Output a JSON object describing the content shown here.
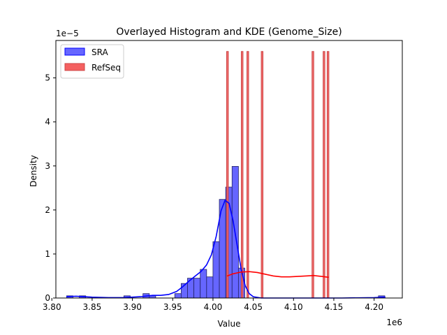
{
  "chart_data": {
    "type": "histogram",
    "title": "Overlayed Histogram and KDE (Genome_Size)",
    "xlabel": "Value",
    "ylabel": "Density",
    "x_scale_label": "1e6",
    "y_scale_label": "1e−5",
    "xlim": [
      3.805,
      4.235
    ],
    "ylim": [
      0,
      5.85
    ],
    "x_ticks": [
      3.8,
      3.85,
      3.9,
      3.95,
      4.0,
      4.05,
      4.1,
      4.15,
      4.2
    ],
    "x_tick_labels": [
      "3.80",
      "3.85",
      "3.90",
      "3.95",
      "4.00",
      "4.05",
      "4.10",
      "4.15",
      "4.20"
    ],
    "y_ticks": [
      0,
      1,
      2,
      3,
      4,
      5
    ],
    "y_tick_labels": [
      "0",
      "1",
      "2",
      "3",
      "4",
      "5"
    ],
    "grid": false,
    "legend_position": "top-left",
    "series": [
      {
        "name": "SRA",
        "color": "#0000ff",
        "fill": "#6666ff",
        "bin_width": 0.0079,
        "bin_starts": [
          3.8183,
          3.8262,
          3.8341,
          3.842,
          3.8499,
          3.8578,
          3.8657,
          3.8736,
          3.8815,
          3.8894,
          3.8973,
          3.9052,
          3.9131,
          3.921,
          3.9289,
          3.9368,
          3.9447,
          3.9526,
          3.9605,
          3.9684,
          3.9763,
          3.9842,
          3.9921,
          4.0,
          4.0079,
          4.0158,
          4.0237,
          4.0316,
          4.0395,
          4.0474,
          4.0553,
          4.0632,
          4.0711,
          4.079,
          4.0869,
          4.0948,
          4.1027,
          4.1106,
          4.1185,
          4.1264,
          4.1343,
          4.1422,
          4.1501,
          4.158,
          4.1659,
          4.1738,
          4.1817,
          4.1896,
          4.1975,
          4.2054
        ],
        "densities": [
          0.05,
          0.0,
          0.05,
          0.0,
          0.0,
          0.0,
          0.0,
          0.0,
          0.0,
          0.05,
          0.0,
          0.0,
          0.1,
          0.05,
          0.0,
          0.0,
          0.0,
          0.1,
          0.33,
          0.45,
          0.45,
          0.65,
          0.48,
          1.28,
          2.24,
          2.52,
          2.99,
          0.68,
          0.0,
          0.0,
          0.0,
          0.0,
          0.0,
          0.0,
          0.0,
          0.0,
          0.0,
          0.0,
          0.0,
          0.0,
          0.0,
          0.0,
          0.0,
          0.0,
          0.0,
          0.0,
          0.0,
          0.0,
          0.0,
          0.05
        ],
        "kde_x": [
          3.818,
          3.83,
          3.84,
          3.85,
          3.87,
          3.89,
          3.91,
          3.925,
          3.935,
          3.945,
          3.955,
          3.962,
          3.97,
          3.978,
          3.985,
          3.992,
          3.998,
          4.004,
          4.01,
          4.015,
          4.02,
          4.025,
          4.03,
          4.035,
          4.04,
          4.045,
          4.05,
          4.06,
          4.08,
          4.12,
          4.16,
          4.2,
          4.214
        ],
        "kde_y": [
          0.03,
          0.04,
          0.03,
          0.02,
          0.01,
          0.01,
          0.03,
          0.06,
          0.06,
          0.08,
          0.15,
          0.25,
          0.38,
          0.5,
          0.6,
          0.75,
          0.98,
          1.4,
          1.98,
          2.22,
          2.15,
          1.75,
          1.2,
          0.65,
          0.28,
          0.1,
          0.03,
          0.0,
          0.0,
          0.0,
          0.0,
          0.01,
          0.02
        ]
      },
      {
        "name": "RefSeq",
        "color": "#cc4444",
        "fill": "#f46060",
        "kde_color": "#ff0000",
        "bar_width": 0.0021,
        "bar_centers": [
          4.018,
          4.0362,
          4.0432,
          4.061,
          4.124,
          4.1378,
          4.1428
        ],
        "bar_height": 5.6,
        "kde_x": [
          4.0175,
          4.025,
          4.035,
          4.045,
          4.055,
          4.065,
          4.075,
          4.085,
          4.095,
          4.105,
          4.115,
          4.125,
          4.135,
          4.1435
        ],
        "kde_y": [
          0.5,
          0.55,
          0.59,
          0.6,
          0.58,
          0.54,
          0.5,
          0.48,
          0.48,
          0.49,
          0.5,
          0.51,
          0.49,
          0.47
        ]
      }
    ]
  }
}
